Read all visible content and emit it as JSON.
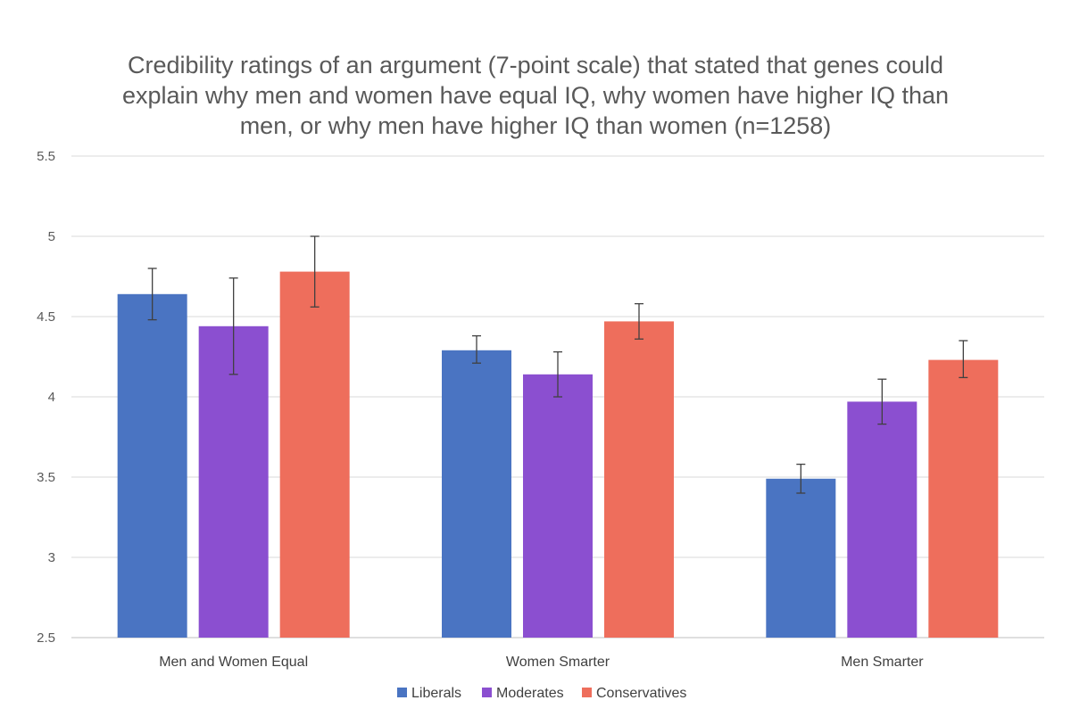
{
  "chart_data": {
    "type": "bar",
    "title_lines": [
      "Credibility ratings of an argument (7-point scale) that stated that genes could",
      "explain why men and women have equal IQ, why women have higher IQ than",
      "men, or why men have higher IQ than women (n=1258)"
    ],
    "categories": [
      "Men and Women Equal",
      "Women Smarter",
      "Men Smarter"
    ],
    "series": [
      {
        "name": "Liberals",
        "color": "#4a74c2",
        "values": [
          4.64,
          4.29,
          3.49
        ],
        "error_low": [
          4.48,
          4.21,
          3.4
        ],
        "error_high": [
          4.8,
          4.38,
          3.58
        ]
      },
      {
        "name": "Moderates",
        "color": "#8b4fd0",
        "values": [
          4.44,
          4.14,
          3.97
        ],
        "error_low": [
          4.14,
          4.0,
          3.83
        ],
        "error_high": [
          4.74,
          4.28,
          4.11
        ]
      },
      {
        "name": "Conservatives",
        "color": "#ee6e5c",
        "values": [
          4.78,
          4.47,
          4.23
        ],
        "error_low": [
          4.56,
          4.36,
          4.12
        ],
        "error_high": [
          5.0,
          4.58,
          4.35
        ]
      }
    ],
    "y_ticks": [
      "2.5",
      "3",
      "3.5",
      "4",
      "4.5",
      "5",
      "5.5"
    ],
    "ylim": [
      2.5,
      5.5
    ],
    "grid": true,
    "legend_position": "bottom",
    "xlabel": "",
    "ylabel": ""
  }
}
